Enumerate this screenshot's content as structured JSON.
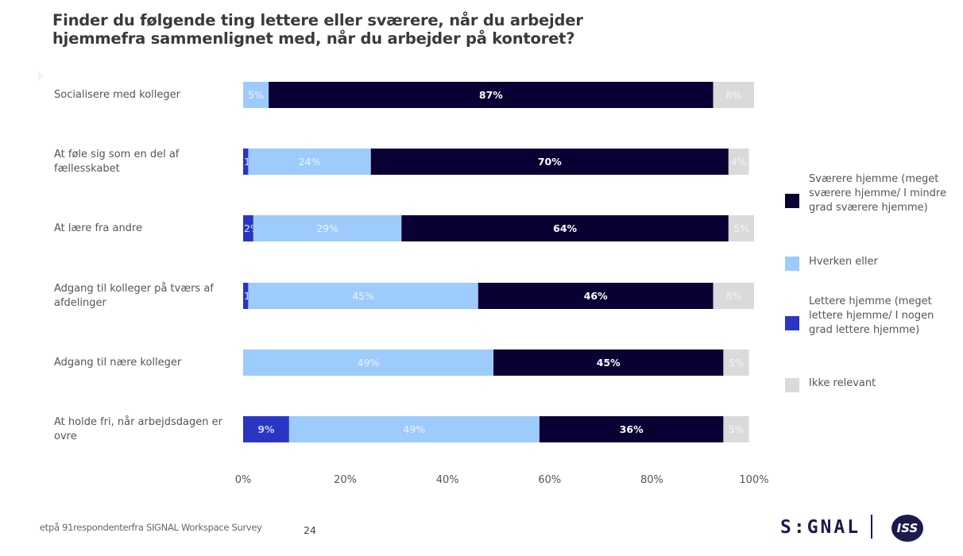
{
  "title": "Finder du følgende ting lettere eller sværere, når du arbejder hjemmefra sammenlignet med, når du arbejder på kontoret?",
  "footer": {
    "note": "etpå 91respondenterfra SIGNAL Workspace Survey",
    "page_number": "24",
    "brand_signal": "S:GNAL",
    "brand_iss": "ISS"
  },
  "colors": {
    "lettere": "#2b35c4",
    "hverken": "#9dcbfb",
    "svaerere": "#0a0033",
    "ikke_relevant": "#dadada"
  },
  "chart_data": {
    "type": "bar",
    "orientation": "horizontal",
    "stacked": true,
    "title": "Finder du følgende ting lettere eller sværere, når du arbejder hjemmefra sammenlignet med, når du arbejder på kontoret?",
    "categories": [
      "Socialisere med kolleger",
      "At føle sig som en del af fællesskabet",
      "At lære fra andre",
      "Adgang til kolleger på tværs af afdelinger",
      "Adgang til nære kolleger",
      "At holde fri, når arbejdsdagen er ovre"
    ],
    "series": [
      {
        "key": "lettere",
        "name": "Lettere hjemme (meget lettere hjemme/ I nogen grad lettere hjemme)",
        "values": [
          0,
          1,
          2,
          1,
          0,
          9
        ]
      },
      {
        "key": "hverken",
        "name": "Hverken eller",
        "values": [
          5,
          24,
          29,
          45,
          49,
          49
        ]
      },
      {
        "key": "svaerere",
        "name": "Sværere hjemme (meget sværere hjemme/ I mindre grad sværere hjemme)",
        "values": [
          87,
          70,
          64,
          46,
          45,
          36
        ]
      },
      {
        "key": "ikke_relevant",
        "name": "Ikke relevant",
        "values": [
          8,
          4,
          5,
          8,
          5,
          5
        ]
      }
    ],
    "data_labels": [
      [
        "",
        "5%",
        "87%",
        "8%"
      ],
      [
        "1%",
        "24%",
        "70%",
        "4%"
      ],
      [
        "2%",
        "29%",
        "64%",
        "5%"
      ],
      [
        "1%",
        "45%",
        "46%",
        "8%"
      ],
      [
        "",
        "49%",
        "45%",
        "5%"
      ],
      [
        "9%",
        "49%",
        "36%",
        "5%"
      ]
    ],
    "xlim": [
      0,
      100
    ],
    "x_ticks": [
      "0%",
      "20%",
      "40%",
      "60%",
      "80%",
      "100%"
    ],
    "legend": [
      {
        "key": "svaerere",
        "label": "Sværere hjemme (meget sværere hjemme/ I mindre grad sværere hjemme)"
      },
      {
        "key": "hverken",
        "label": "Hverken eller"
      },
      {
        "key": "lettere",
        "label": "Lettere hjemme (meget lettere hjemme/ I nogen grad lettere hjemme)"
      },
      {
        "key": "ikke_relevant",
        "label": "Ikke relevant"
      }
    ],
    "legend_position": "right",
    "grid": false
  }
}
